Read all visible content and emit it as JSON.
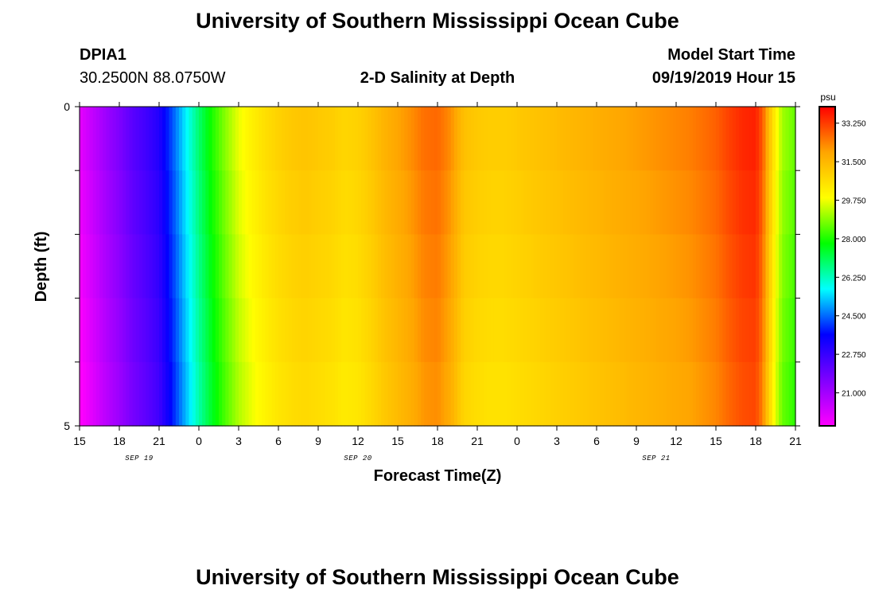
{
  "header": {
    "title": "University of Southern Mississippi Ocean Cube",
    "station_id": "DPIA1",
    "station_coords": "30.2500N 88.0750W",
    "chart_title": "2-D Salinity at Depth",
    "model_start_label": "Model Start Time",
    "model_start_value": "09/19/2019 Hour 15"
  },
  "footer": {
    "title": "University of Southern Mississippi Ocean Cube"
  },
  "chart_data": {
    "type": "heatmap",
    "title": "2-D Salinity at Depth",
    "xlabel": "Forecast Time(Z)",
    "ylabel": "Depth (ft)",
    "ylim": [
      0,
      5
    ],
    "y_tick_labels": [
      "0",
      "5"
    ],
    "y_ticks": [
      0,
      1,
      2,
      3,
      4,
      5
    ],
    "x_ticks": [
      {
        "hour": 0,
        "label": "15"
      },
      {
        "hour": 3,
        "label": "18"
      },
      {
        "hour": 6,
        "label": "21"
      },
      {
        "hour": 9,
        "label": "0"
      },
      {
        "hour": 12,
        "label": "3"
      },
      {
        "hour": 15,
        "label": "6"
      },
      {
        "hour": 18,
        "label": "9"
      },
      {
        "hour": 21,
        "label": "12"
      },
      {
        "hour": 24,
        "label": "15"
      },
      {
        "hour": 27,
        "label": "18"
      },
      {
        "hour": 30,
        "label": "21"
      },
      {
        "hour": 33,
        "label": "0"
      },
      {
        "hour": 36,
        "label": "3"
      },
      {
        "hour": 39,
        "label": "6"
      },
      {
        "hour": 42,
        "label": "9"
      },
      {
        "hour": 45,
        "label": "12"
      },
      {
        "hour": 48,
        "label": "15"
      },
      {
        "hour": 51,
        "label": "18"
      },
      {
        "hour": 54,
        "label": "21"
      }
    ],
    "date_labels": [
      {
        "hour": 4.5,
        "label": "SEP 19"
      },
      {
        "hour": 21,
        "label": "SEP 20"
      },
      {
        "hour": 43.5,
        "label": "SEP 21"
      }
    ],
    "x_range_hours": [
      0,
      54
    ],
    "colorbar": {
      "unit": "psu",
      "min": 19.5,
      "max": 34.0,
      "tick_values": [
        21.0,
        22.75,
        24.5,
        26.25,
        28.0,
        29.75,
        31.5,
        33.25
      ],
      "tick_labels": [
        "21.000",
        "22.750",
        "24.500",
        "26.250",
        "28.000",
        "29.750",
        "31.500",
        "33.250"
      ],
      "colors": [
        "#ff00ff",
        "#8000ff",
        "#0000ff",
        "#00ffff",
        "#00ff00",
        "#ffff00",
        "#ffa500",
        "#ff0000"
      ]
    },
    "salinity_by_hour": [
      {
        "hour": 0,
        "value": 19.9
      },
      {
        "hour": 1,
        "value": 20.5
      },
      {
        "hour": 2,
        "value": 21.1
      },
      {
        "hour": 3,
        "value": 21.6
      },
      {
        "hour": 4,
        "value": 22.2
      },
      {
        "hour": 5,
        "value": 22.6
      },
      {
        "hour": 6,
        "value": 23.1
      },
      {
        "hour": 7,
        "value": 24.3
      },
      {
        "hour": 8,
        "value": 25.6
      },
      {
        "hour": 9,
        "value": 26.9
      },
      {
        "hour": 10,
        "value": 28.0
      },
      {
        "hour": 11,
        "value": 28.9
      },
      {
        "hour": 12,
        "value": 29.7
      },
      {
        "hour": 13,
        "value": 30.2
      },
      {
        "hour": 14,
        "value": 30.6
      },
      {
        "hour": 15,
        "value": 30.9
      },
      {
        "hour": 16,
        "value": 31.1
      },
      {
        "hour": 17,
        "value": 31.2
      },
      {
        "hour": 18,
        "value": 31.1
      },
      {
        "hour": 19,
        "value": 31.0
      },
      {
        "hour": 20,
        "value": 30.8
      },
      {
        "hour": 21,
        "value": 30.9
      },
      {
        "hour": 22,
        "value": 31.2
      },
      {
        "hour": 23,
        "value": 31.6
      },
      {
        "hour": 24,
        "value": 31.9
      },
      {
        "hour": 25,
        "value": 32.2
      },
      {
        "hour": 26,
        "value": 32.6
      },
      {
        "hour": 27,
        "value": 32.7
      },
      {
        "hour": 28,
        "value": 32.2
      },
      {
        "hour": 29,
        "value": 31.3
      },
      {
        "hour": 30,
        "value": 31.1
      },
      {
        "hour": 31,
        "value": 31.0
      },
      {
        "hour": 32,
        "value": 31.0
      },
      {
        "hour": 33,
        "value": 31.1
      },
      {
        "hour": 34,
        "value": 31.2
      },
      {
        "hour": 35,
        "value": 31.3
      },
      {
        "hour": 36,
        "value": 31.4
      },
      {
        "hour": 37,
        "value": 31.5
      },
      {
        "hour": 38,
        "value": 31.6
      },
      {
        "hour": 39,
        "value": 31.7
      },
      {
        "hour": 40,
        "value": 31.8
      },
      {
        "hour": 41,
        "value": 31.9
      },
      {
        "hour": 42,
        "value": 32.0
      },
      {
        "hour": 43,
        "value": 32.1
      },
      {
        "hour": 44,
        "value": 32.2
      },
      {
        "hour": 45,
        "value": 32.3
      },
      {
        "hour": 46,
        "value": 32.4
      },
      {
        "hour": 47,
        "value": 32.6
      },
      {
        "hour": 48,
        "value": 32.8
      },
      {
        "hour": 49,
        "value": 33.2
      },
      {
        "hour": 50,
        "value": 33.5
      },
      {
        "hour": 51,
        "value": 33.6
      },
      {
        "hour": 51.5,
        "value": 32.9
      },
      {
        "hour": 52,
        "value": 31.4
      },
      {
        "hour": 52.5,
        "value": 30.1
      },
      {
        "hour": 53,
        "value": 29.1
      },
      {
        "hour": 54,
        "value": 28.6
      }
    ]
  }
}
